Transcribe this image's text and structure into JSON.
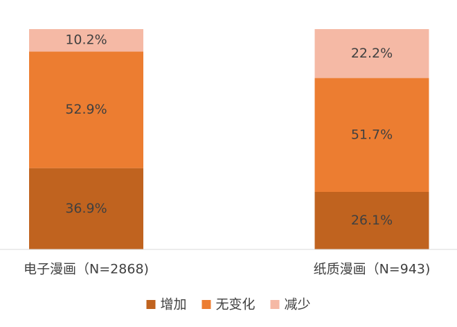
{
  "chart_data": {
    "type": "stacked_bar",
    "categories": [
      "电子漫画（N=2868)",
      "纸质漫画（N=943)"
    ],
    "series": [
      {
        "name": "增加",
        "color": "#c0631f",
        "values": [
          36.9,
          26.1
        ],
        "value_labels": [
          "36.9%",
          "26.1%"
        ]
      },
      {
        "name": "无变化",
        "color": "#ec7d31",
        "values": [
          52.9,
          51.7
        ],
        "value_labels": [
          "52.9%",
          "51.7%"
        ]
      },
      {
        "name": "减少",
        "color": "#f5b9a5",
        "values": [
          10.2,
          22.2
        ],
        "value_labels": [
          "10.2%",
          "22.2%"
        ]
      }
    ],
    "ylim": [
      0,
      100
    ],
    "legend": "bottom"
  }
}
